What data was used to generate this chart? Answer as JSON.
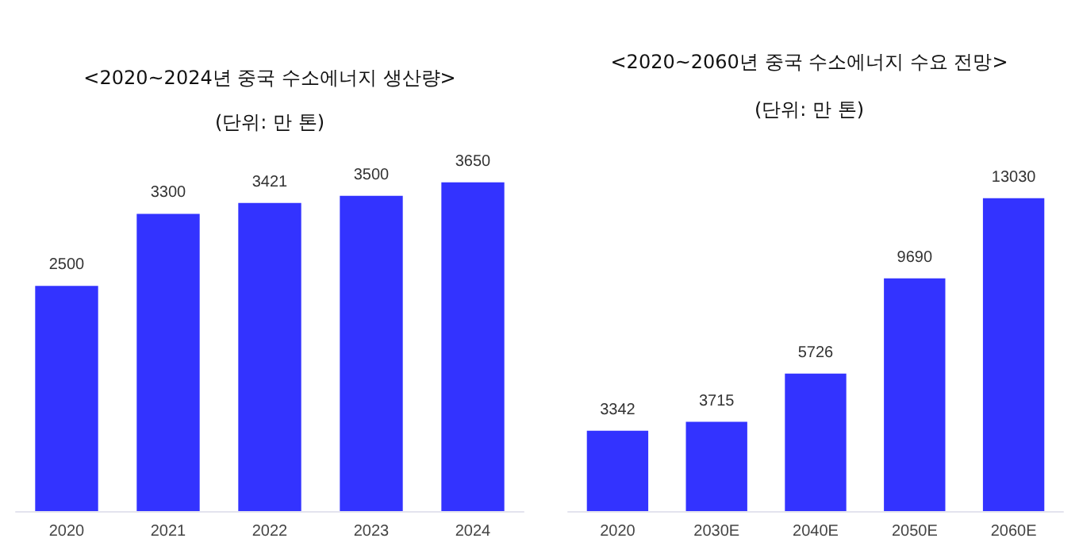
{
  "chart_data": [
    {
      "type": "bar",
      "title": "<2020~2024년 중국 수소에너지 생산량>",
      "subtitle": "(단위: 만 톤)",
      "categories": [
        "2020",
        "2021",
        "2022",
        "2023",
        "2024"
      ],
      "values": [
        2500,
        3300,
        3421,
        3500,
        3650
      ],
      "color": "#3333ff",
      "data_labels": true
    },
    {
      "type": "bar",
      "title": "<2020~2060년 중국 수소에너지 수요 전망>",
      "subtitle": "(단위: 만 톤)",
      "categories": [
        "2020",
        "2030E",
        "2040E",
        "2050E",
        "2060E"
      ],
      "values": [
        3342,
        3715,
        5726,
        9690,
        13030
      ],
      "color": "#3333ff",
      "data_labels": true
    }
  ]
}
